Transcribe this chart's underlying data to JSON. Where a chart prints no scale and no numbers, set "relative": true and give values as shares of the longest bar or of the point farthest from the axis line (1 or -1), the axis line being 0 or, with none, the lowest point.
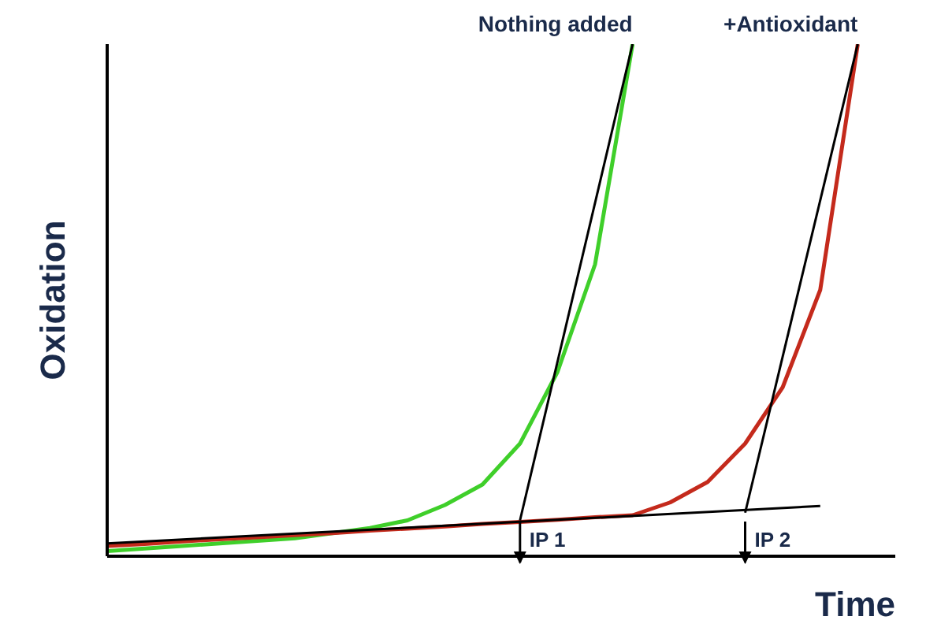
{
  "chart_data": {
    "type": "line",
    "relative": true,
    "xlabel": "Time",
    "ylabel": "Oxidation",
    "marker": "none",
    "line_style": "solid",
    "categories": [
      null,
      null,
      null,
      null,
      null,
      null,
      null,
      null,
      null,
      null,
      null,
      null,
      null,
      null,
      null,
      null,
      null,
      null,
      null,
      null,
      null,
      null
    ],
    "series": [
      {
        "name": "Nothing added",
        "color": "#3fcf2a",
        "values": [
          0.01,
          0.015,
          0.02,
          0.025,
          0.03,
          0.035,
          0.045,
          0.055,
          0.07,
          0.1,
          0.14,
          0.22,
          0.36,
          0.57,
          1,
          null,
          null,
          null,
          null,
          null,
          null,
          null
        ]
      },
      {
        "name": "+Antioxidant",
        "color": "#c42a1c",
        "values": [
          0.02,
          0.024,
          0.029,
          0.033,
          0.037,
          0.041,
          0.045,
          0.05,
          0.054,
          0.058,
          0.063,
          0.067,
          0.071,
          0.076,
          0.08,
          0.105,
          0.145,
          0.22,
          0.33,
          0.52,
          1,
          null
        ]
      },
      {
        "color": "#000000",
        "values": [
          0.025,
          null,
          null,
          null,
          null,
          null,
          null,
          null,
          null,
          null,
          null,
          null,
          null,
          null,
          null,
          null,
          null,
          null,
          null,
          0.098,
          null,
          null
        ]
      },
      {
        "color": "#000000",
        "values": [
          null,
          null,
          null,
          null,
          null,
          null,
          null,
          null,
          null,
          null,
          null,
          0.07,
          null,
          null,
          1,
          null,
          null,
          null,
          null,
          null,
          null,
          null
        ]
      },
      {
        "color": "#000000",
        "values": [
          null,
          null,
          null,
          null,
          null,
          null,
          null,
          null,
          null,
          null,
          null,
          null,
          null,
          null,
          null,
          null,
          null,
          0.085,
          null,
          null,
          1,
          null
        ]
      }
    ],
    "annotations": [
      "IP 1",
      "IP 2"
    ]
  }
}
